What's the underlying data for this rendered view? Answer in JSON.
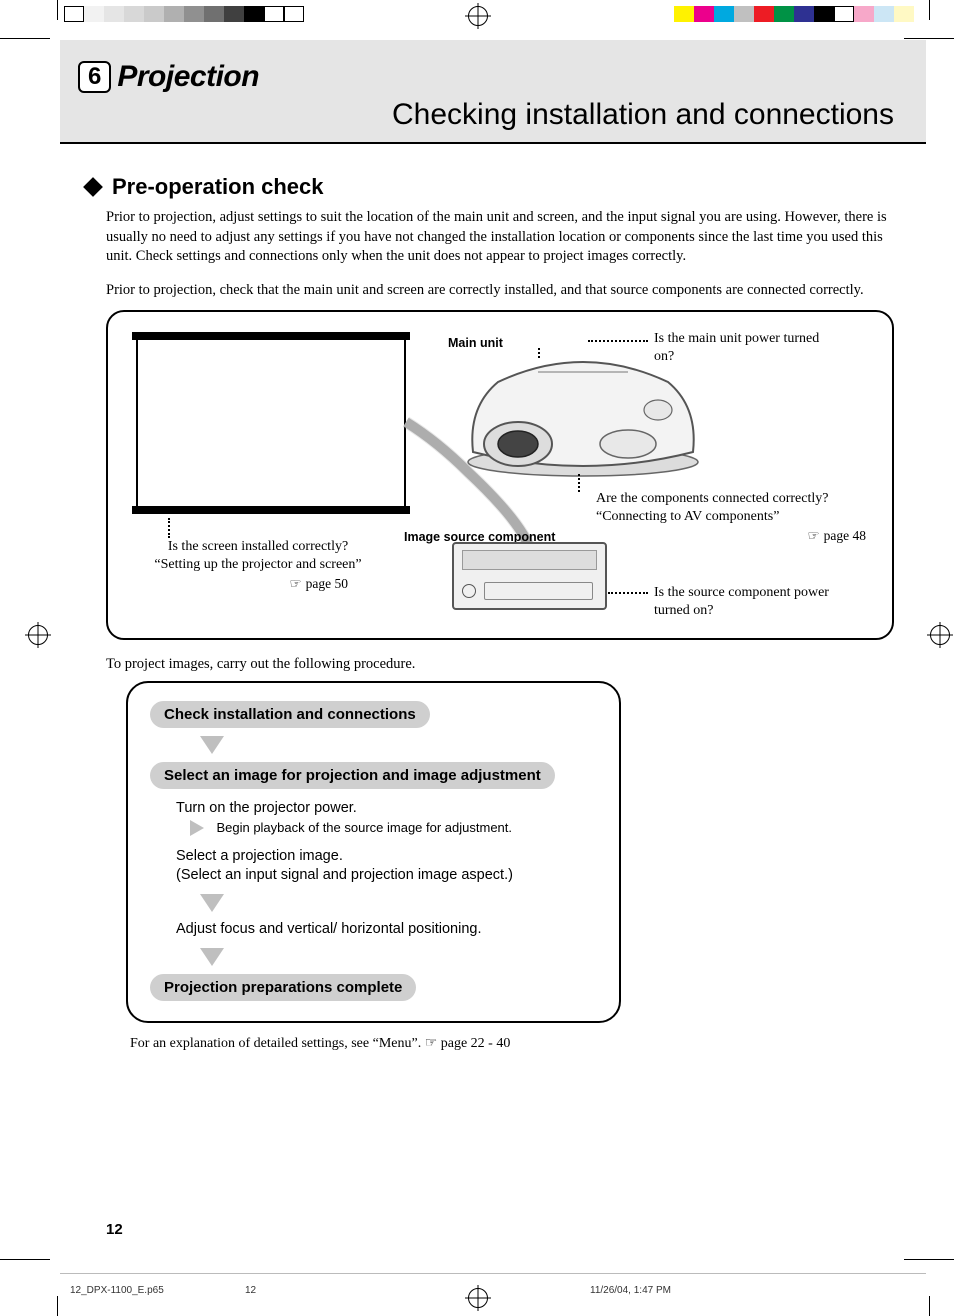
{
  "colorBars": {
    "left": [
      "#ffffff",
      "#f2f2f2",
      "#e5e5e5",
      "#d8d8d8",
      "#cacaca",
      "#b0b0b0",
      "#909090",
      "#707070",
      "#404040",
      "#000000",
      "#ffffff",
      "#ffffff"
    ],
    "right": [
      "#fff200",
      "#ec008c",
      "#00a9e0",
      "#c0c0c0",
      "#ed1c24",
      "#009245",
      "#2e3192",
      "#000000",
      "#ffffff",
      "#f7a8c9",
      "#cce6f5",
      "#fff9c4"
    ]
  },
  "chapter": {
    "num": "6",
    "title": "Projection"
  },
  "subtitle": "Checking installation and connections",
  "h2": "Pre-operation check",
  "para1": "Prior to projection, adjust settings to suit the location of the main unit and screen, and the input signal you are using. However, there is usually no need to adjust any settings if you have not changed the installation location or components since the last time you used this unit. Check settings and connections only when the unit does not appear to project images correctly.",
  "para2": "Prior to projection, check that the main unit and screen are correctly installed, and that source components are connected correctly.",
  "diagram": {
    "mainUnitLabel": "Main unit",
    "mainUnitQ": "Is the main unit power turned on?",
    "imageSrcLabel": "Image source component",
    "screenQ1": "Is the screen installed correctly?",
    "screenQ2": "“Setting up the projector and screen”",
    "screenRef": "page 50",
    "connQ1": "Are the components connected correctly?",
    "connQ2": "“Connecting to AV components”",
    "connRef": "page 48",
    "sourceQ": "Is the source component power turned on?"
  },
  "procIntro": "To project images, carry out the following procedure.",
  "flow": {
    "box1": "Check installation and connections",
    "box2": "Select an image for projection and image adjustment",
    "box3": "Projection preparations complete",
    "step1": "Turn on the projector power.",
    "step1sub": "Begin playback of the source image for adjustment.",
    "step2a": "Select a projection image.",
    "step2b": "(Select an input signal and projection image aspect.)",
    "step3": "Adjust focus and vertical/ horizontal positioning."
  },
  "footnote": "For an explanation of detailed settings, see “Menu”.  ☞ page 22 - 40",
  "pageNum": "12",
  "footer": {
    "file": "12_DPX-1100_E.p65",
    "page": "12",
    "date": "11/26/04, 1:47 PM"
  }
}
